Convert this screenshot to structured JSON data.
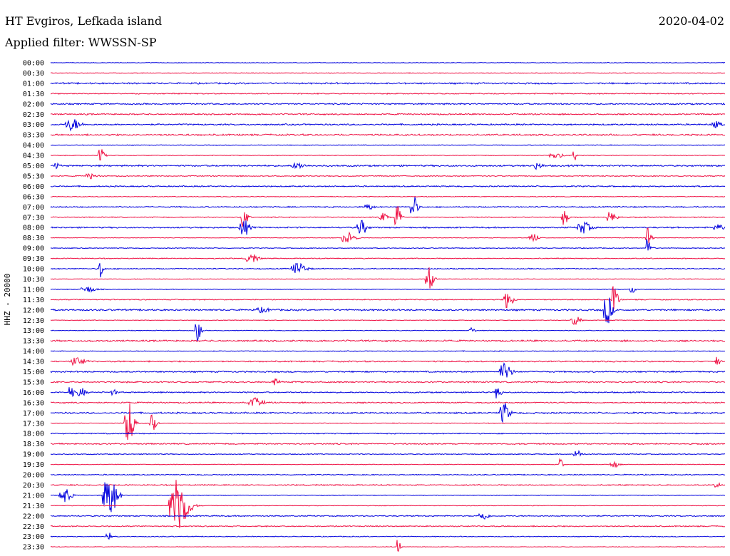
{
  "header": {
    "station": "HT Evgiros, Lefkada island",
    "filter": "Applied filter: WWSSN-SP",
    "date": "2020-04-02"
  },
  "chart_data": {
    "type": "line",
    "title": "HT Evgiros, Lefkada island",
    "ylabel": "HHZ - 20000",
    "row_times": [
      "00:00",
      "00:30",
      "01:00",
      "01:30",
      "02:00",
      "02:30",
      "03:00",
      "03:30",
      "04:00",
      "04:30",
      "05:00",
      "05:30",
      "06:00",
      "06:30",
      "07:00",
      "07:30",
      "08:00",
      "08:30",
      "09:00",
      "09:30",
      "10:00",
      "10:30",
      "11:00",
      "11:30",
      "12:00",
      "12:30",
      "13:00",
      "13:30",
      "14:00",
      "14:30",
      "15:00",
      "15:30",
      "16:00",
      "16:30",
      "17:00",
      "17:30",
      "18:00",
      "18:30",
      "19:00",
      "19:30",
      "20:00",
      "20:30",
      "21:00",
      "21:30",
      "22:00",
      "22:30",
      "23:00",
      "23:30"
    ],
    "series_colors": [
      "#0000dd",
      "#ee1144"
    ],
    "minutes_per_row": 30
  }
}
